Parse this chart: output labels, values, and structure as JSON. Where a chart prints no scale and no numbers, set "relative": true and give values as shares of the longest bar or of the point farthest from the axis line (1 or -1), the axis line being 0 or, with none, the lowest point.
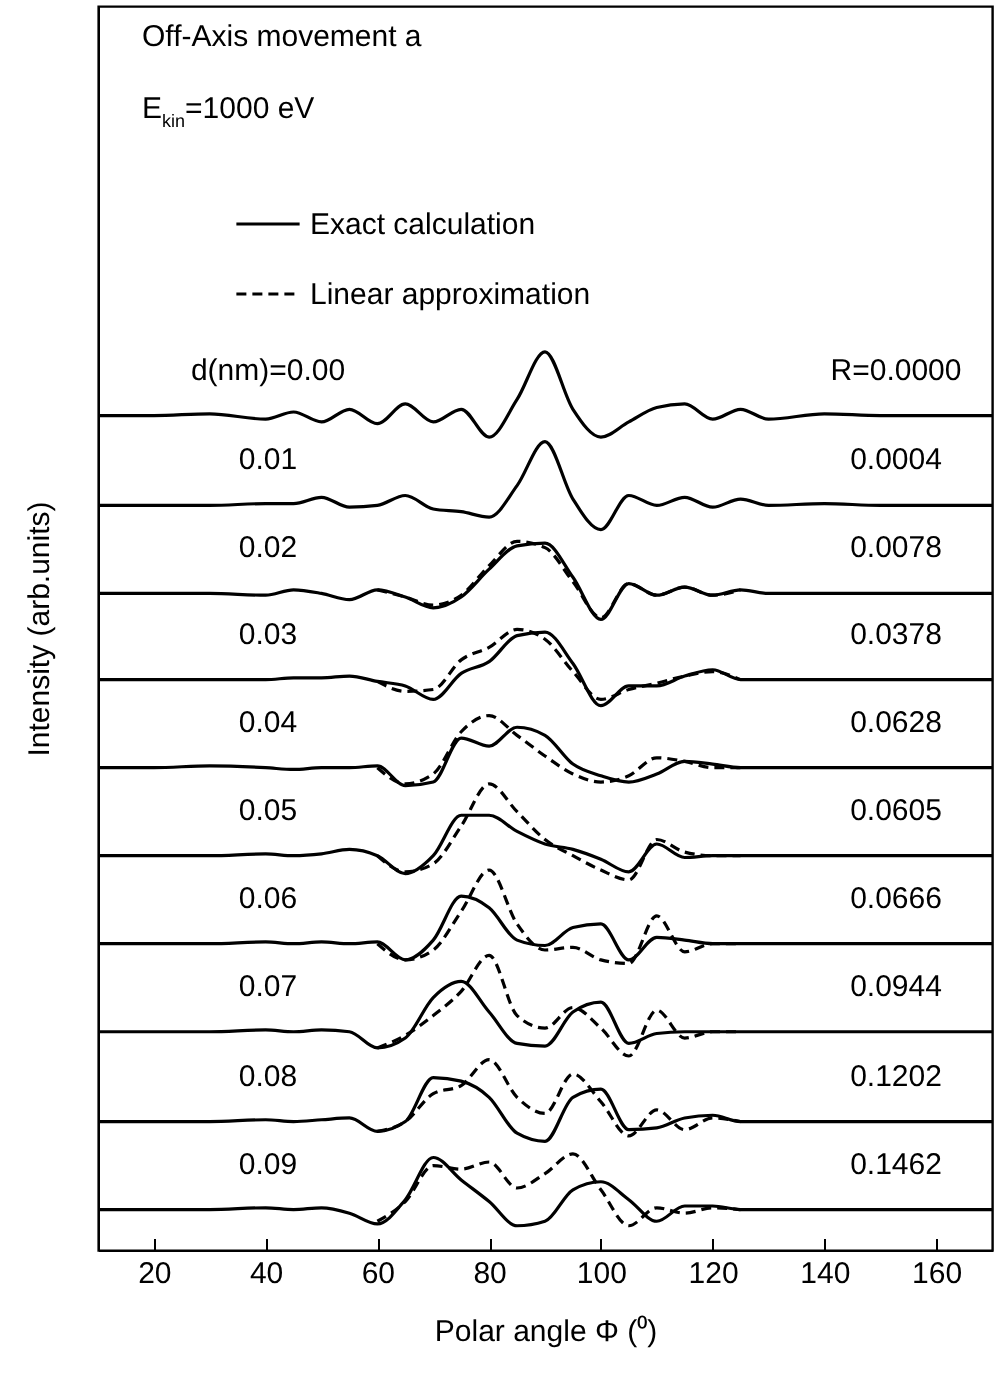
{
  "chart_data": {
    "type": "line",
    "title": "Off-Axis movement a",
    "subtitle": "E$_{kin}$=1000 eV",
    "xlabel": "Polar angle Φ (⁰)",
    "ylabel": "Intensity (arb.units)",
    "relative": true,
    "xlim": [
      10,
      170
    ],
    "xticks": [
      20,
      40,
      60,
      80,
      100,
      120,
      140,
      160
    ],
    "legend": "top left",
    "x": [
      10,
      20,
      30,
      40,
      45,
      50,
      55,
      60,
      65,
      70,
      75,
      80,
      85,
      90,
      95,
      100,
      105,
      110,
      115,
      120,
      125,
      130,
      140,
      150,
      160,
      170
    ],
    "series": [
      {
        "name": "Exact calculation",
        "color": "#000000",
        "line_style": "solid",
        "values": [
          0.929,
          0.929,
          0.931,
          0.925,
          0.933,
          0.922,
          0.936,
          0.92,
          0.942,
          0.922,
          0.936,
          0.905,
          0.947,
          1.0,
          0.936,
          0.905,
          0.922,
          0.938,
          0.942,
          0.925,
          0.936,
          0.925,
          0.931,
          0.929,
          0.929,
          0.929
        ]
      },
      {
        "color": "#000000",
        "line_style": "solid",
        "values": [
          0.829,
          0.829,
          0.829,
          0.831,
          0.831,
          0.838,
          0.827,
          0.829,
          0.84,
          0.825,
          0.822,
          0.816,
          0.851,
          0.9,
          0.836,
          0.802,
          0.84,
          0.829,
          0.838,
          0.827,
          0.836,
          0.829,
          0.831,
          0.829,
          0.829,
          0.829
        ]
      },
      {
        "color": "#000000",
        "line_style": "solid",
        "values": [
          0.731,
          0.731,
          0.731,
          0.729,
          0.735,
          0.731,
          0.724,
          0.735,
          0.727,
          0.715,
          0.727,
          0.758,
          0.784,
          0.787,
          0.749,
          0.702,
          0.742,
          0.729,
          0.738,
          0.729,
          0.735,
          0.731,
          0.731,
          0.731,
          0.731,
          0.731
        ]
      },
      {
        "color": "#000000",
        "line_style": "solid",
        "values": [
          0.635,
          0.635,
          0.635,
          0.635,
          0.637,
          0.637,
          0.639,
          0.633,
          0.628,
          0.613,
          0.642,
          0.655,
          0.684,
          0.688,
          0.653,
          0.606,
          0.628,
          0.628,
          0.639,
          0.646,
          0.635,
          0.635,
          0.635,
          0.635,
          0.635,
          0.635
        ]
      },
      {
        "color": "#000000",
        "line_style": "solid",
        "values": [
          0.537,
          0.537,
          0.539,
          0.537,
          0.535,
          0.537,
          0.537,
          0.539,
          0.517,
          0.521,
          0.57,
          0.561,
          0.582,
          0.573,
          0.541,
          0.528,
          0.521,
          0.53,
          0.544,
          0.541,
          0.537,
          0.537,
          0.537,
          0.537,
          0.537,
          0.537
        ]
      },
      {
        "color": "#000000",
        "line_style": "solid",
        "values": [
          0.439,
          0.439,
          0.439,
          0.441,
          0.439,
          0.441,
          0.446,
          0.439,
          0.419,
          0.439,
          0.484,
          0.484,
          0.466,
          0.452,
          0.446,
          0.435,
          0.421,
          0.452,
          0.437,
          0.439,
          0.439,
          0.439,
          0.439,
          0.439,
          0.439,
          0.439
        ]
      },
      {
        "color": "#000000",
        "line_style": "solid",
        "values": [
          0.341,
          0.341,
          0.341,
          0.343,
          0.341,
          0.343,
          0.341,
          0.343,
          0.323,
          0.345,
          0.394,
          0.381,
          0.345,
          0.339,
          0.359,
          0.363,
          0.323,
          0.348,
          0.345,
          0.341,
          0.341,
          0.341,
          0.341,
          0.341,
          0.341,
          0.341
        ]
      },
      {
        "color": "#000000",
        "line_style": "solid",
        "values": [
          0.243,
          0.243,
          0.243,
          0.245,
          0.243,
          0.245,
          0.243,
          0.225,
          0.236,
          0.281,
          0.299,
          0.265,
          0.23,
          0.227,
          0.265,
          0.276,
          0.23,
          0.241,
          0.243,
          0.243,
          0.243,
          0.243,
          0.243,
          0.243,
          0.243,
          0.243
        ]
      },
      {
        "color": "#000000",
        "line_style": "solid",
        "values": [
          0.143,
          0.143,
          0.143,
          0.145,
          0.143,
          0.145,
          0.147,
          0.132,
          0.143,
          0.192,
          0.188,
          0.17,
          0.13,
          0.121,
          0.17,
          0.179,
          0.134,
          0.136,
          0.147,
          0.15,
          0.143,
          0.143,
          0.143,
          0.143,
          0.143,
          0.143
        ]
      },
      {
        "color": "#000000",
        "line_style": "solid",
        "values": [
          0.045,
          0.045,
          0.045,
          0.047,
          0.045,
          0.047,
          0.041,
          0.029,
          0.056,
          0.103,
          0.078,
          0.054,
          0.027,
          0.032,
          0.067,
          0.076,
          0.056,
          0.032,
          0.049,
          0.049,
          0.045,
          0.045,
          0.045,
          0.045,
          0.045,
          0.045
        ]
      },
      {
        "name": "Linear approximation",
        "color": "#000000",
        "line_style": "dashed",
        "x": [
          60,
          65,
          70,
          75,
          80,
          85,
          90,
          95,
          100,
          105,
          110,
          115,
          120,
          125
        ],
        "values": [
          0.735,
          0.727,
          0.718,
          0.729,
          0.762,
          0.789,
          0.782,
          0.744,
          0.704,
          0.742,
          0.729,
          0.738,
          0.729,
          0.735
        ]
      },
      {
        "color": "#000000",
        "line_style": "dashed",
        "x": [
          60,
          65,
          70,
          75,
          80,
          85,
          90,
          95,
          100,
          105,
          110,
          115,
          120,
          125
        ],
        "values": [
          0.633,
          0.622,
          0.624,
          0.657,
          0.671,
          0.691,
          0.68,
          0.644,
          0.613,
          0.624,
          0.631,
          0.639,
          0.644,
          0.635
        ]
      },
      {
        "color": "#000000",
        "line_style": "dashed",
        "x": [
          60,
          65,
          70,
          75,
          80,
          85,
          90,
          95,
          100,
          105,
          110,
          115,
          120,
          125
        ],
        "values": [
          0.537,
          0.519,
          0.53,
          0.577,
          0.595,
          0.573,
          0.55,
          0.53,
          0.521,
          0.528,
          0.548,
          0.544,
          0.537,
          0.537
        ]
      },
      {
        "color": "#000000",
        "line_style": "dashed",
        "x": [
          60,
          65,
          70,
          75,
          80,
          85,
          90,
          95,
          100,
          105,
          110,
          115,
          120,
          125
        ],
        "values": [
          0.439,
          0.421,
          0.43,
          0.472,
          0.519,
          0.488,
          0.457,
          0.439,
          0.423,
          0.412,
          0.457,
          0.443,
          0.439,
          0.439
        ]
      },
      {
        "color": "#000000",
        "line_style": "dashed",
        "x": [
          60,
          65,
          70,
          75,
          80,
          85,
          90,
          95,
          100,
          105,
          110,
          115,
          120,
          125
        ],
        "values": [
          0.341,
          0.323,
          0.334,
          0.377,
          0.423,
          0.363,
          0.334,
          0.337,
          0.323,
          0.319,
          0.372,
          0.332,
          0.341,
          0.341
        ]
      },
      {
        "color": "#000000",
        "line_style": "dashed",
        "x": [
          60,
          65,
          70,
          75,
          80,
          85,
          90,
          95,
          100,
          105,
          110,
          115,
          120,
          125
        ],
        "values": [
          0.225,
          0.239,
          0.261,
          0.288,
          0.328,
          0.261,
          0.247,
          0.27,
          0.247,
          0.216,
          0.267,
          0.236,
          0.243,
          0.243
        ]
      },
      {
        "color": "#000000",
        "line_style": "dashed",
        "x": [
          60,
          65,
          70,
          75,
          80,
          85,
          90,
          95,
          100,
          105,
          110,
          115,
          120,
          125
        ],
        "values": [
          0.132,
          0.143,
          0.174,
          0.183,
          0.212,
          0.17,
          0.152,
          0.196,
          0.165,
          0.127,
          0.156,
          0.134,
          0.147,
          0.143
        ]
      },
      {
        "color": "#000000",
        "line_style": "dashed",
        "x": [
          60,
          65,
          70,
          75,
          80,
          85,
          90,
          95,
          100,
          105,
          110,
          115,
          120,
          125
        ],
        "values": [
          0.032,
          0.054,
          0.094,
          0.09,
          0.098,
          0.069,
          0.085,
          0.107,
          0.067,
          0.027,
          0.047,
          0.041,
          0.047,
          0.045
        ]
      }
    ],
    "annotations": [
      "d(nm)=0.00",
      "0.01",
      "0.02",
      "0.03",
      "0.04",
      "0.05",
      "0.06",
      "0.07",
      "0.08",
      "0.09",
      "R=0.0000",
      "0.0004",
      "0.0078",
      "0.0378",
      "0.0628",
      "0.0605",
      "0.0666",
      "0.0944",
      "0.1202",
      "0.1462"
    ]
  }
}
